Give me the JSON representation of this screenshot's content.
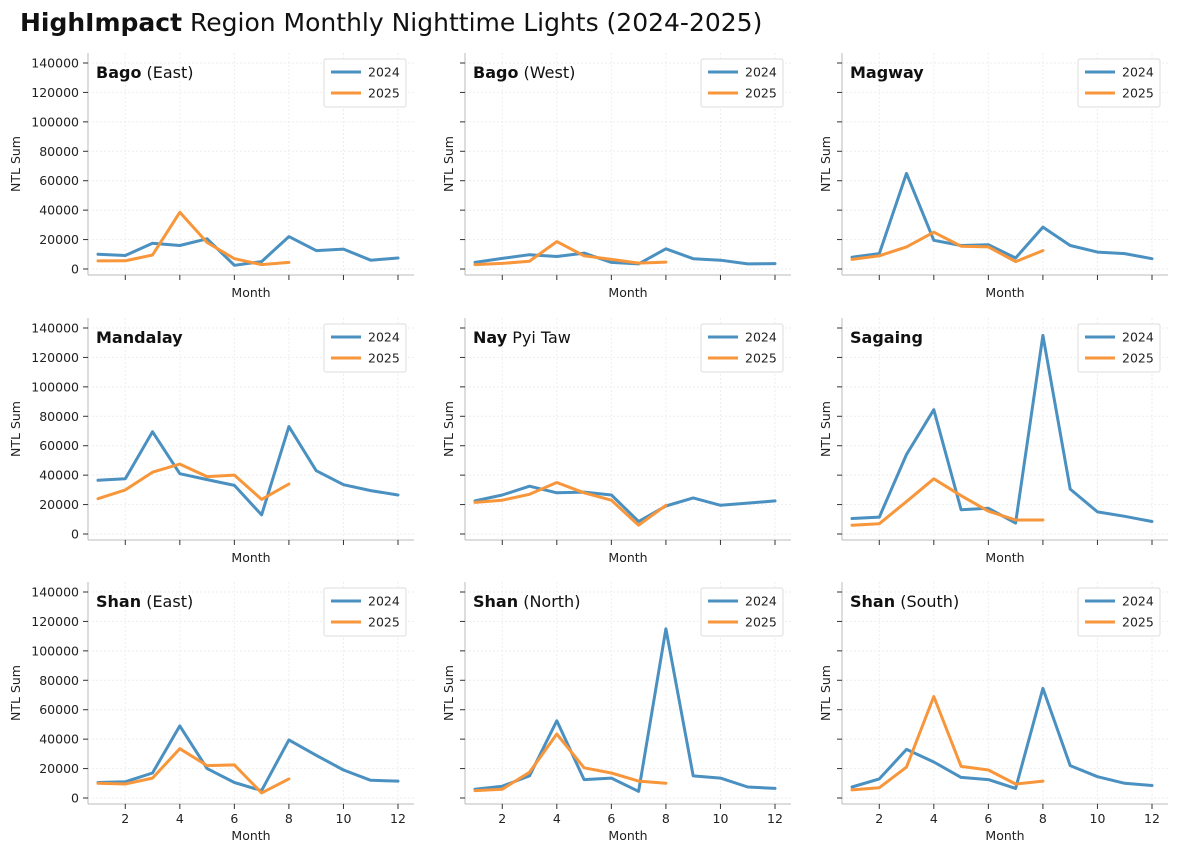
{
  "title": {
    "bold": "HighImpact",
    "rest": " Region Monthly Nighttime Lights (2024-2025)"
  },
  "colors": {
    "series_2024": "#4a90c0",
    "series_2025": "#f7963a",
    "grid": "#eeeeee",
    "axis": "#bbbbbb",
    "legend_border": "#dddddd"
  },
  "chart_data": {
    "type": "line",
    "xlabel": "Month",
    "ylabel": "NTL Sum",
    "ylim": [
      0,
      140000
    ],
    "yticks": [
      0,
      20000,
      40000,
      60000,
      80000,
      100000,
      120000,
      140000
    ],
    "xticks": [
      2,
      4,
      6,
      8,
      10,
      12
    ],
    "grid": true,
    "legend_placement": "top-right",
    "series_names": [
      "2024",
      "2025"
    ],
    "panels": [
      {
        "title_bold": "Bago",
        "title_rest": " (East)",
        "series": [
          {
            "name": "2024",
            "x": [
              1,
              2,
              3,
              4,
              5,
              6,
              7,
              8,
              9,
              10,
              11,
              12
            ],
            "values": [
              10000,
              9200,
              17500,
              16000,
              20500,
              2500,
              5000,
              22000,
              12500,
              13500,
              6000,
              7500
            ]
          },
          {
            "name": "2025",
            "x": [
              1,
              2,
              3,
              4,
              5,
              6,
              7,
              8
            ],
            "values": [
              5500,
              5600,
              9500,
              38500,
              18000,
              7000,
              3000,
              4500
            ]
          }
        ]
      },
      {
        "title_bold": "Bago",
        "title_rest": " (West)",
        "series": [
          {
            "name": "2024",
            "x": [
              1,
              2,
              3,
              4,
              5,
              6,
              7,
              8,
              9,
              10,
              11,
              12
            ],
            "values": [
              4500,
              7200,
              9700,
              8500,
              10800,
              4500,
              3500,
              13700,
              7000,
              6000,
              3500,
              3700
            ]
          },
          {
            "name": "2025",
            "x": [
              1,
              2,
              3,
              4,
              5,
              6,
              7,
              8
            ],
            "values": [
              3000,
              3800,
              5300,
              18600,
              9000,
              6500,
              4000,
              4700
            ]
          }
        ]
      },
      {
        "title_bold": "Magway",
        "title_rest": "",
        "series": [
          {
            "name": "2024",
            "x": [
              1,
              2,
              3,
              4,
              5,
              6,
              7,
              8,
              9,
              10,
              11,
              12
            ],
            "values": [
              8000,
              10500,
              65000,
              19500,
              16000,
              16500,
              7500,
              28500,
              16000,
              11500,
              10500,
              7000
            ]
          },
          {
            "name": "2025",
            "x": [
              1,
              2,
              3,
              4,
              5,
              6,
              7,
              8
            ],
            "values": [
              6500,
              9000,
              15000,
              25000,
              15500,
              15000,
              5000,
              12500
            ]
          }
        ]
      },
      {
        "title_bold": "Mandalay",
        "title_rest": "",
        "series": [
          {
            "name": "2024",
            "x": [
              1,
              2,
              3,
              4,
              5,
              6,
              7,
              8,
              9,
              10,
              11,
              12
            ],
            "values": [
              36500,
              37500,
              69500,
              41000,
              37000,
              33000,
              13000,
              73000,
              43000,
              33500,
              29500,
              26500
            ]
          },
          {
            "name": "2025",
            "x": [
              1,
              2,
              3,
              4,
              5,
              6,
              7,
              8
            ],
            "values": [
              24000,
              30000,
              42000,
              47500,
              39000,
              40000,
              23500,
              34000
            ]
          }
        ]
      },
      {
        "title_bold": "Nay",
        "title_rest": " Pyi Taw",
        "series": [
          {
            "name": "2024",
            "x": [
              1,
              2,
              3,
              4,
              5,
              6,
              7,
              8,
              9,
              10,
              11,
              12
            ],
            "values": [
              22500,
              26500,
              32500,
              28000,
              28500,
              26500,
              8500,
              19000,
              24500,
              19500,
              21000,
              22500
            ]
          },
          {
            "name": "2025",
            "x": [
              1,
              2,
              3,
              4,
              5,
              6,
              7,
              8
            ],
            "values": [
              21500,
              23000,
              27000,
              35000,
              28000,
              23000,
              6000,
              19500
            ]
          }
        ]
      },
      {
        "title_bold": "Sagaing",
        "title_rest": "",
        "series": [
          {
            "name": "2024",
            "x": [
              1,
              2,
              3,
              4,
              5,
              6,
              7,
              8,
              9,
              10,
              11,
              12
            ],
            "values": [
              10500,
              11500,
              54000,
              84500,
              16500,
              17500,
              7500,
              135000,
              30500,
              15000,
              12000,
              8500
            ]
          },
          {
            "name": "2025",
            "x": [
              1,
              2,
              3,
              4,
              5,
              6,
              7,
              8
            ],
            "values": [
              6000,
              7000,
              22000,
              37500,
              26000,
              15500,
              9500,
              9500
            ]
          }
        ]
      },
      {
        "title_bold": "Shan",
        "title_rest": " (East)",
        "series": [
          {
            "name": "2024",
            "x": [
              1,
              2,
              3,
              4,
              5,
              6,
              7,
              8,
              9,
              10,
              11,
              12
            ],
            "values": [
              10500,
              11000,
              17000,
              49000,
              20000,
              10500,
              5000,
              39500,
              29000,
              19000,
              12000,
              11500
            ]
          },
          {
            "name": "2025",
            "x": [
              1,
              2,
              3,
              4,
              5,
              6,
              7,
              8
            ],
            "values": [
              10000,
              9500,
              13500,
              33500,
              22000,
              22500,
              3500,
              13000
            ]
          }
        ]
      },
      {
        "title_bold": "Shan",
        "title_rest": " (North)",
        "series": [
          {
            "name": "2024",
            "x": [
              1,
              2,
              3,
              4,
              5,
              6,
              7,
              8,
              9,
              10,
              11,
              12
            ],
            "values": [
              6000,
              8000,
              15000,
              52500,
              12500,
              13500,
              4500,
              115000,
              15000,
              13500,
              7500,
              6500
            ]
          },
          {
            "name": "2025",
            "x": [
              1,
              2,
              3,
              4,
              5,
              6,
              7,
              8
            ],
            "values": [
              5000,
              6000,
              17500,
              43500,
              20500,
              17000,
              11500,
              10000
            ]
          }
        ]
      },
      {
        "title_bold": "Shan",
        "title_rest": " (South)",
        "series": [
          {
            "name": "2024",
            "x": [
              1,
              2,
              3,
              4,
              5,
              6,
              7,
              8,
              9,
              10,
              11,
              12
            ],
            "values": [
              7500,
              13000,
              33000,
              24500,
              14000,
              12500,
              6500,
              74500,
              22000,
              14500,
              10000,
              8500
            ]
          },
          {
            "name": "2025",
            "x": [
              1,
              2,
              3,
              4,
              5,
              6,
              7,
              8
            ],
            "values": [
              5500,
              7000,
              21000,
              69000,
              21500,
              19000,
              9500,
              11500
            ]
          }
        ]
      }
    ]
  }
}
